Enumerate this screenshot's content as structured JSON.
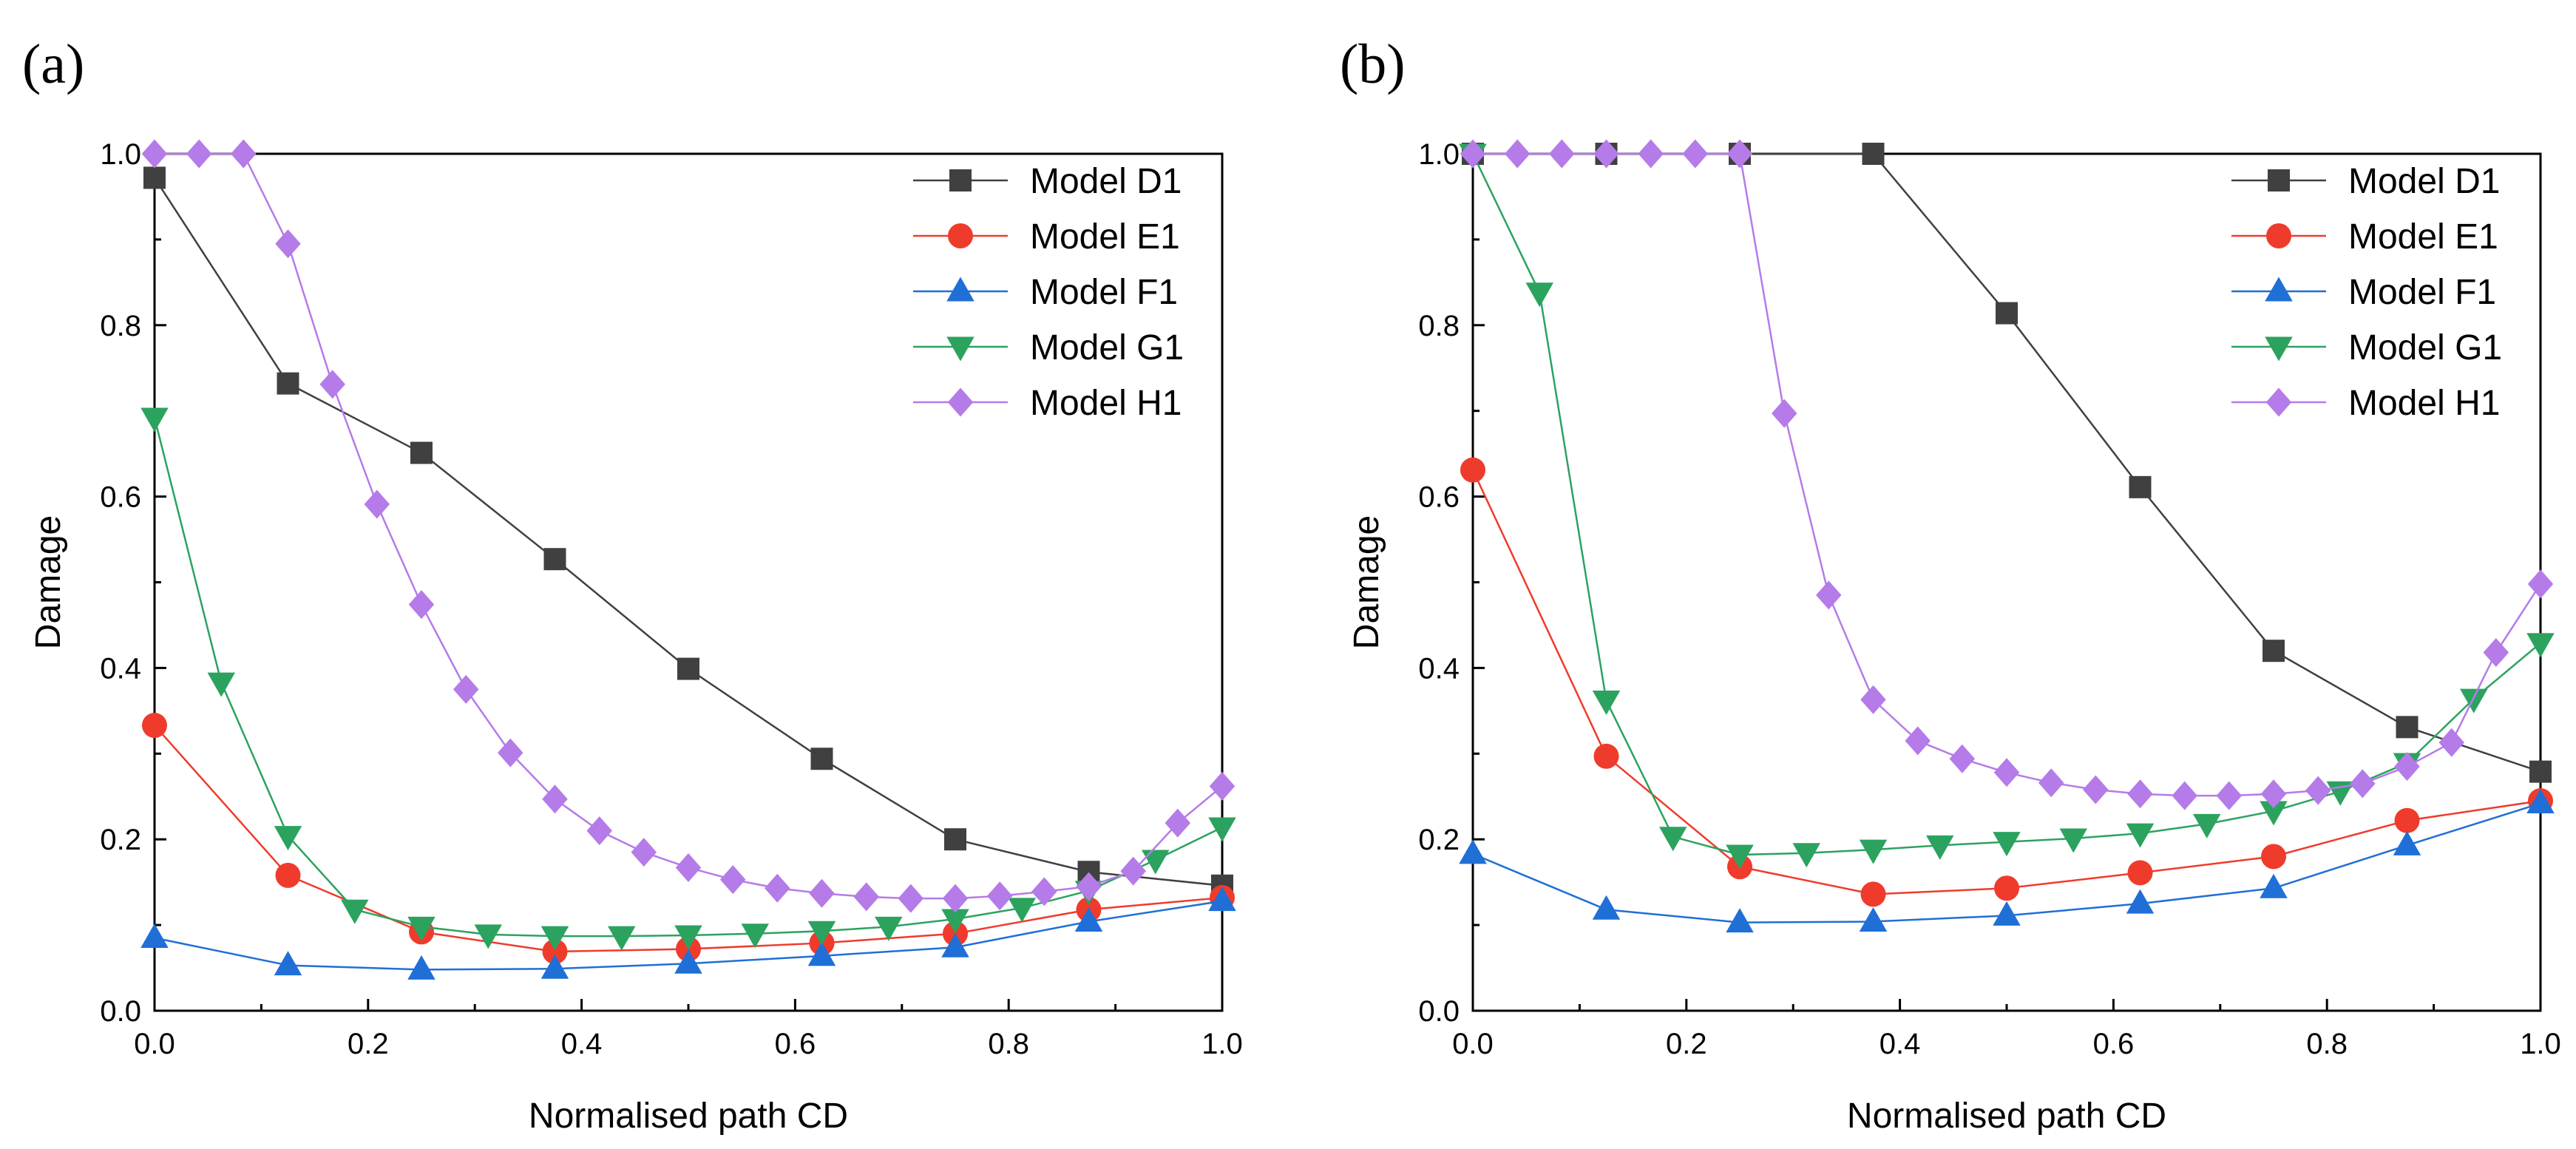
{
  "chart_data": [
    {
      "panel_label": "(a)",
      "type": "line",
      "xlabel": "Normalised path CD",
      "ylabel": "Damage",
      "xlim": [
        0,
        1
      ],
      "ylim": [
        0,
        1
      ],
      "xticks": [
        "0.0",
        "0.2",
        "0.4",
        "0.6",
        "0.8",
        "1.0"
      ],
      "yticks": [
        "0.0",
        "0.2",
        "0.4",
        "0.6",
        "0.8",
        "1.0"
      ],
      "legend_position": "top-right",
      "series": [
        {
          "name": "Model D1",
          "color": "#404040",
          "marker": "square",
          "x": [
            0,
            0.125,
            0.25,
            0.375,
            0.5,
            0.625,
            0.75,
            0.875,
            1.0
          ],
          "y": [
            0.972,
            0.732,
            0.651,
            0.527,
            0.399,
            0.294,
            0.2,
            0.162,
            0.146
          ]
        },
        {
          "name": "Model E1",
          "color": "#ef3b2c",
          "marker": "circle",
          "x": [
            0,
            0.125,
            0.25,
            0.375,
            0.5,
            0.625,
            0.75,
            0.875,
            1.0
          ],
          "y": [
            0.333,
            0.158,
            0.092,
            0.069,
            0.072,
            0.079,
            0.09,
            0.118,
            0.132
          ]
        },
        {
          "name": "Model F1",
          "color": "#1f6fd6",
          "marker": "triangle-up",
          "x": [
            0,
            0.125,
            0.25,
            0.375,
            0.5,
            0.625,
            0.75,
            0.875,
            1.0
          ],
          "y": [
            0.085,
            0.053,
            0.048,
            0.049,
            0.055,
            0.064,
            0.074,
            0.104,
            0.128
          ]
        },
        {
          "name": "Model G1",
          "color": "#2ca25f",
          "marker": "triangle-down",
          "x": [
            0,
            0.0625,
            0.125,
            0.1875,
            0.25,
            0.3125,
            0.375,
            0.4375,
            0.5,
            0.5625,
            0.625,
            0.6875,
            0.75,
            0.8125,
            0.875,
            0.9375,
            1.0
          ],
          "y": [
            0.692,
            0.383,
            0.204,
            0.118,
            0.098,
            0.089,
            0.087,
            0.087,
            0.088,
            0.09,
            0.093,
            0.098,
            0.107,
            0.12,
            0.14,
            0.176,
            0.214
          ]
        },
        {
          "name": "Model H1",
          "color": "#b57be8",
          "marker": "diamond",
          "x": [
            0,
            0.0417,
            0.0833,
            0.125,
            0.1667,
            0.2083,
            0.25,
            0.2917,
            0.3333,
            0.375,
            0.4167,
            0.4583,
            0.5,
            0.5417,
            0.5833,
            0.625,
            0.6667,
            0.7083,
            0.75,
            0.7917,
            0.8333,
            0.875,
            0.9167,
            0.9583,
            1.0
          ],
          "y": [
            1.0,
            1.0,
            1.0,
            0.895,
            0.731,
            0.591,
            0.474,
            0.375,
            0.301,
            0.247,
            0.21,
            0.185,
            0.167,
            0.153,
            0.143,
            0.137,
            0.133,
            0.131,
            0.131,
            0.134,
            0.139,
            0.145,
            0.163,
            0.219,
            0.262
          ]
        }
      ]
    },
    {
      "panel_label": "(b)",
      "type": "line",
      "xlabel": "Normalised path CD",
      "ylabel": "Damage",
      "xlim": [
        0,
        1
      ],
      "ylim": [
        0,
        1
      ],
      "xticks": [
        "0.0",
        "0.2",
        "0.4",
        "0.6",
        "0.8",
        "1.0"
      ],
      "yticks": [
        "0.0",
        "0.2",
        "0.4",
        "0.6",
        "0.8",
        "1.0"
      ],
      "legend_position": "top-right",
      "series": [
        {
          "name": "Model D1",
          "color": "#404040",
          "marker": "square",
          "x": [
            0,
            0.125,
            0.25,
            0.375,
            0.5,
            0.625,
            0.75,
            0.875,
            1.0
          ],
          "y": [
            1.0,
            1.0,
            1.0,
            1.0,
            0.814,
            0.611,
            0.42,
            0.331,
            0.279
          ]
        },
        {
          "name": "Model E1",
          "color": "#ef3b2c",
          "marker": "circle",
          "x": [
            0,
            0.125,
            0.25,
            0.375,
            0.5,
            0.625,
            0.75,
            0.875,
            1.0
          ],
          "y": [
            0.631,
            0.297,
            0.168,
            0.136,
            0.143,
            0.161,
            0.18,
            0.222,
            0.245
          ]
        },
        {
          "name": "Model F1",
          "color": "#1f6fd6",
          "marker": "triangle-up",
          "x": [
            0,
            0.125,
            0.25,
            0.375,
            0.5,
            0.625,
            0.75,
            0.875,
            1.0
          ],
          "y": [
            0.183,
            0.118,
            0.103,
            0.104,
            0.111,
            0.125,
            0.143,
            0.193,
            0.242
          ]
        },
        {
          "name": "Model G1",
          "color": "#2ca25f",
          "marker": "triangle-down",
          "x": [
            0,
            0.0625,
            0.125,
            0.1875,
            0.25,
            0.3125,
            0.375,
            0.4375,
            0.5,
            0.5625,
            0.625,
            0.6875,
            0.75,
            0.8125,
            0.875,
            0.9375,
            1.0
          ],
          "y": [
            1.0,
            0.838,
            0.362,
            0.203,
            0.182,
            0.184,
            0.188,
            0.193,
            0.197,
            0.201,
            0.207,
            0.218,
            0.233,
            0.256,
            0.289,
            0.364,
            0.429
          ]
        },
        {
          "name": "Model H1",
          "color": "#b57be8",
          "marker": "diamond",
          "x": [
            0,
            0.0417,
            0.0833,
            0.125,
            0.1667,
            0.2083,
            0.25,
            0.2917,
            0.3333,
            0.375,
            0.4167,
            0.4583,
            0.5,
            0.5417,
            0.5833,
            0.625,
            0.6667,
            0.7083,
            0.75,
            0.7917,
            0.8333,
            0.875,
            0.9167,
            0.9583,
            1.0
          ],
          "y": [
            1.0,
            1.0,
            1.0,
            1.0,
            1.0,
            1.0,
            1.0,
            0.697,
            0.485,
            0.363,
            0.315,
            0.294,
            0.278,
            0.266,
            0.258,
            0.253,
            0.251,
            0.251,
            0.253,
            0.257,
            0.265,
            0.285,
            0.313,
            0.418,
            0.498
          ]
        }
      ]
    }
  ]
}
